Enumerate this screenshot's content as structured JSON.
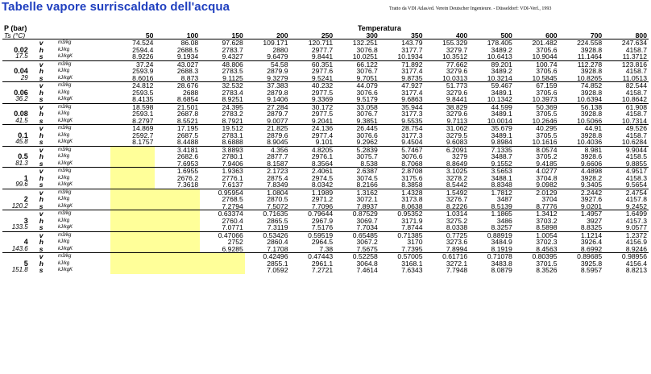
{
  "title": "Tabelle vapore surriscaldato dell'acqua",
  "source": "Tratto da VDI Atlas/ed. Verein Deutscher Ingenieure. - Düsseldorf: VDI-Verl., 1993",
  "header": {
    "p_label": "P (bar)",
    "ts_label": "Ts (°C)",
    "temp_label": "Temperatura",
    "temps": [
      "50",
      "100",
      "150",
      "200",
      "250",
      "300",
      "350",
      "400",
      "500",
      "600",
      "700",
      "800"
    ]
  },
  "symbols": [
    "v",
    "h",
    "s"
  ],
  "units": [
    "m3/kg",
    "kJ/kg",
    "kJ/kgK"
  ],
  "groups": [
    {
      "p": "0.02",
      "ts": "17.5",
      "rows": [
        [
          "74.524",
          "86.08",
          "97.628",
          "109.171",
          "120.711",
          "132.251",
          "143.79",
          "155.329",
          "178.405",
          "201.482",
          "224.558",
          "247.634"
        ],
        [
          "2594.4",
          "2688.5",
          "2783.7",
          "2880",
          "2977.7",
          "3076.8",
          "3177.7",
          "3279.7",
          "3489.2",
          "3705.6",
          "3928.8",
          "4158.7"
        ],
        [
          "8.9226",
          "9.1934",
          "9.4327",
          "9.6479",
          "9.8441",
          "10.0251",
          "10.1934",
          "10.3512",
          "10.6413",
          "10.9044",
          "11.1464",
          "11.3712"
        ]
      ]
    },
    {
      "p": "0.04",
      "ts": "29",
      "rows": [
        [
          "37.24",
          "43.027",
          "48.806",
          "54.58",
          "60.351",
          "66.122",
          "71.892",
          "77.662",
          "89.201",
          "100.74",
          "112.278",
          "123.816"
        ],
        [
          "2593.9",
          "2688.3",
          "2783.5",
          "2879.9",
          "2977.6",
          "3076.7",
          "3177.4",
          "3279.6",
          "3489.2",
          "3705.6",
          "3928.8",
          "4158.7"
        ],
        [
          "8.6016",
          "8.873",
          "9.1125",
          "9.3279",
          "9.5241",
          "9.7051",
          "9.8735",
          "10.0313",
          "10.3214",
          "10.5845",
          "10.8265",
          "11.0513"
        ]
      ]
    },
    {
      "p": "0.06",
      "ts": "36.2",
      "rows": [
        [
          "24.812",
          "28.676",
          "32.532",
          "37.383",
          "40.232",
          "44.079",
          "47.927",
          "51.773",
          "59.467",
          "67.159",
          "74.852",
          "82.544"
        ],
        [
          "2593.5",
          "2688",
          "2783.4",
          "2879.8",
          "2977.5",
          "3076.6",
          "3177.4",
          "3279.6",
          "3489.1",
          "3705.6",
          "3928.8",
          "4158.7"
        ],
        [
          "8.4135",
          "8.6854",
          "8.9251",
          "9.1406",
          "9.3369",
          "9.5179",
          "9.6863",
          "9.8441",
          "10.1342",
          "10.3973",
          "10.6394",
          "10.8642"
        ]
      ]
    },
    {
      "p": "0.08",
      "ts": "41.5",
      "rows": [
        [
          "18.598",
          "21.501",
          "24.395",
          "27.284",
          "30.172",
          "33.058",
          "35.944",
          "38.829",
          "44.599",
          "50.369",
          "56.138",
          "61.908"
        ],
        [
          "2593.1",
          "2687.8",
          "2783.2",
          "2879.7",
          "2977.5",
          "3076.7",
          "3177.3",
          "3279.6",
          "3489.1",
          "3705.5",
          "3928.8",
          "4158.7"
        ],
        [
          "8.2797",
          "8.5521",
          "8.7921",
          "9.0077",
          "9.2041",
          "9.3851",
          "9.5535",
          "9.7113",
          "10.0014",
          "10.2646",
          "10.5066",
          "10.7314"
        ]
      ]
    },
    {
      "p": "0.1",
      "ts": "45.8",
      "rows": [
        [
          "14.869",
          "17.195",
          "19.512",
          "21.825",
          "24.136",
          "26.445",
          "28.754",
          "31.062",
          "35.679",
          "40.295",
          "44.91",
          "49.526"
        ],
        [
          "2592.7",
          "2687.5",
          "2783.1",
          "2879.6",
          "2977.4",
          "3076.6",
          "3177.3",
          "3279.5",
          "3489.1",
          "3705.5",
          "3928.8",
          "4158.7"
        ],
        [
          "8.1757",
          "8.4488",
          "8.6888",
          "8.9045",
          "9.101",
          "9.2962",
          "9.4504",
          "9.6083",
          "9.8984",
          "10.1616",
          "10.4036",
          "10.6284"
        ]
      ]
    },
    {
      "p": "0.5",
      "ts": "81.3",
      "rows": [
        [
          "",
          "3.4181",
          "3.8893",
          "4.356",
          "4.8205",
          "5.2839",
          "5.7467",
          "6.2091",
          "7.1335",
          "8.0574",
          "8.981",
          "9.9044"
        ],
        [
          "",
          "2682.6",
          "2780.1",
          "2877.7",
          "2976.1",
          "3075.7",
          "3076.6",
          "3279",
          "3488.7",
          "3705.2",
          "3928.6",
          "4158.5"
        ],
        [
          "",
          "7.6953",
          "7.9406",
          "8.1587",
          "8.3564",
          "8.538",
          "8.7068",
          "8.8649",
          "9.1552",
          "9.4185",
          "9.6606",
          "9.8855"
        ]
      ]
    },
    {
      "p": "1",
      "ts": "99.6",
      "rows": [
        [
          "",
          "1.6955",
          "1.9363",
          "2.1723",
          "2.4061",
          "2.6387",
          "2.8708",
          "3.1025",
          "3.5653",
          "4.0277",
          "4.4898",
          "4.9517"
        ],
        [
          "",
          "2676.2",
          "2776.1",
          "2875.4",
          "2974.5",
          "3074.5",
          "3175.6",
          "3278.2",
          "3488.1",
          "3704.8",
          "3928.2",
          "4158.3"
        ],
        [
          "",
          "7.3618",
          "7.6137",
          "7.8349",
          "8.0342",
          "8.2166",
          "8.3858",
          "8.5442",
          "8.8348",
          "9.0982",
          "9.3405",
          "9.5654"
        ]
      ]
    },
    {
      "p": "2",
      "ts": "120.2",
      "rows": [
        [
          "",
          "",
          "0.95954",
          "1.0804",
          "1.1989",
          "1.3162",
          "1.4328",
          "1.5492",
          "1.7812",
          "2.0129",
          "2.2442",
          "2.4754"
        ],
        [
          "",
          "",
          "2768.5",
          "2870.5",
          "2971.2",
          "3072.1",
          "3173.8",
          "3276.7",
          "3487",
          "3704",
          "3927.6",
          "4157.8"
        ],
        [
          "",
          "",
          "7.2794",
          "7.5072",
          "7.7096",
          "7.8937",
          "8.0638",
          "8.2226",
          "8.5139",
          "8.7776",
          "9.0201",
          "9.2452"
        ]
      ]
    },
    {
      "p": "3",
      "ts": "133.5",
      "rows": [
        [
          "",
          "",
          "0.63374",
          "0.71635",
          "0.79644",
          "0.87529",
          "0.95352",
          "1.0314",
          "1.1865",
          "1.3412",
          "1.4957",
          "1.6499"
        ],
        [
          "",
          "",
          "2760.4",
          "2865.5",
          "2967.9",
          "3069.7",
          "3171.9",
          "3275.2",
          "3486",
          "3703.2",
          "3927",
          "4157.3"
        ],
        [
          "",
          "",
          "7.0771",
          "7.3119",
          "7.5176",
          "7.7034",
          "7.8744",
          "8.0338",
          "8.3257",
          "8.5898",
          "8.8325",
          "9.0577"
        ]
      ]
    },
    {
      "p": "4",
      "ts": "143.6",
      "rows": [
        [
          "",
          "",
          "0.47066",
          "0.53426",
          "0.59519",
          "0.65485",
          "0.71385",
          "0.7725",
          "0.88919",
          "1.0054",
          "1.1214",
          "1.2372"
        ],
        [
          "",
          "",
          "2752",
          "2860.4",
          "2964.5",
          "3067.2",
          "3170",
          "3273.6",
          "3484.9",
          "3702.3",
          "3926.4",
          "4156.9"
        ],
        [
          "",
          "",
          "6.9285",
          "7.1708",
          "7.38",
          "7.5675",
          "7.7395",
          "7.8994",
          "8.1919",
          "8.4563",
          "8.6992",
          "8.9246"
        ]
      ]
    },
    {
      "p": "5",
      "ts": "151.8",
      "rows": [
        [
          "",
          "",
          "",
          "0.42496",
          "0.47443",
          "0.52258",
          "0.57005",
          "0.61716",
          "0.71078",
          "0.80395",
          "0.89685",
          "0.98956"
        ],
        [
          "",
          "",
          "",
          "2855.1",
          "2961.1",
          "3064.8",
          "3168.1",
          "3272.1",
          "3483.8",
          "3701.5",
          "3925.8",
          "4156.4"
        ],
        [
          "",
          "",
          "",
          "7.0592",
          "7.2721",
          "7.4614",
          "7.6343",
          "7.7948",
          "8.0879",
          "8.3526",
          "8.5957",
          "8.8213"
        ]
      ]
    }
  ]
}
